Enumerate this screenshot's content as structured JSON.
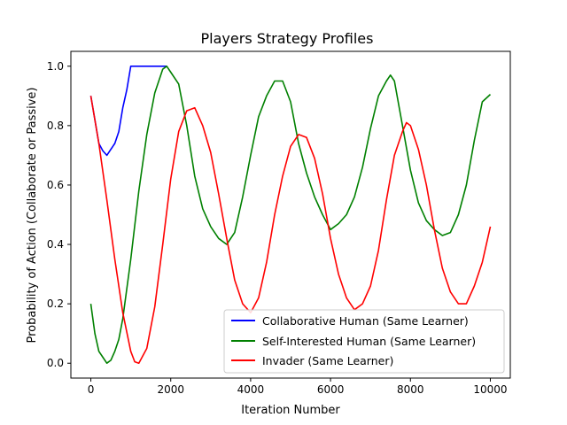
{
  "chart_data": {
    "type": "line",
    "title": "Players Strategy Profiles",
    "xlabel": "Iteration Number",
    "ylabel": "Probability of Action (Collaborate or Passive)",
    "xlim": [
      -500,
      10500
    ],
    "ylim": [
      -0.05,
      1.05
    ],
    "xticks": [
      0,
      2000,
      4000,
      6000,
      8000,
      10000
    ],
    "yticks": [
      0.0,
      0.2,
      0.4,
      0.6,
      0.8,
      1.0
    ],
    "xtick_labels": [
      "0",
      "2000",
      "4000",
      "6000",
      "8000",
      "10000"
    ],
    "ytick_labels": [
      "0.0",
      "0.2",
      "0.4",
      "0.6",
      "0.8",
      "1.0"
    ],
    "grid": false,
    "legend_position": "lower-right",
    "series": [
      {
        "name": "Collaborative Human (Same Learner)",
        "color": "#0000ff",
        "x": [
          0,
          100,
          200,
          300,
          400,
          500,
          600,
          700,
          800,
          900,
          1000,
          1200,
          1400,
          1600,
          1800,
          1900
        ],
        "y": [
          0.9,
          0.82,
          0.74,
          0.715,
          0.7,
          0.72,
          0.74,
          0.78,
          0.86,
          0.92,
          1.0,
          1.0,
          1.0,
          1.0,
          1.0,
          1.0
        ]
      },
      {
        "name": "Self-Interested Human (Same Learner)",
        "color": "#008000",
        "x": [
          0,
          100,
          200,
          300,
          400,
          500,
          600,
          700,
          800,
          1000,
          1200,
          1400,
          1600,
          1800,
          1900,
          2000,
          2200,
          2400,
          2600,
          2800,
          3000,
          3200,
          3400,
          3600,
          3800,
          4000,
          4200,
          4400,
          4600,
          4800,
          5000,
          5200,
          5400,
          5600,
          5800,
          6000,
          6200,
          6400,
          6600,
          6800,
          7000,
          7200,
          7400,
          7500,
          7600,
          7800,
          8000,
          8200,
          8400,
          8600,
          8800,
          9000,
          9200,
          9400,
          9600,
          9800,
          10000
        ],
        "y": [
          0.2,
          0.1,
          0.04,
          0.02,
          0.0,
          0.01,
          0.04,
          0.08,
          0.15,
          0.35,
          0.58,
          0.77,
          0.91,
          0.99,
          1.0,
          0.98,
          0.94,
          0.8,
          0.63,
          0.52,
          0.46,
          0.42,
          0.4,
          0.44,
          0.56,
          0.7,
          0.83,
          0.9,
          0.95,
          0.95,
          0.88,
          0.74,
          0.64,
          0.56,
          0.5,
          0.45,
          0.47,
          0.5,
          0.56,
          0.66,
          0.79,
          0.9,
          0.95,
          0.97,
          0.95,
          0.8,
          0.65,
          0.54,
          0.48,
          0.45,
          0.43,
          0.44,
          0.5,
          0.6,
          0.75,
          0.88,
          0.905
        ]
      },
      {
        "name": "Invader (Same Learner)",
        "color": "#ff0000",
        "x": [
          0,
          200,
          400,
          600,
          800,
          1000,
          1100,
          1200,
          1400,
          1600,
          1800,
          2000,
          2200,
          2400,
          2600,
          2800,
          3000,
          3200,
          3400,
          3600,
          3800,
          4000,
          4200,
          4400,
          4600,
          4800,
          5000,
          5200,
          5400,
          5600,
          5800,
          6000,
          6200,
          6400,
          6600,
          6800,
          7000,
          7200,
          7400,
          7600,
          7800,
          7900,
          8000,
          8200,
          8400,
          8600,
          8800,
          9000,
          9200,
          9400,
          9600,
          9800,
          10000
        ],
        "y": [
          0.9,
          0.74,
          0.55,
          0.35,
          0.17,
          0.04,
          0.005,
          0.0,
          0.05,
          0.19,
          0.4,
          0.62,
          0.78,
          0.85,
          0.86,
          0.8,
          0.71,
          0.57,
          0.42,
          0.28,
          0.2,
          0.17,
          0.22,
          0.34,
          0.5,
          0.63,
          0.73,
          0.77,
          0.76,
          0.69,
          0.57,
          0.42,
          0.3,
          0.22,
          0.18,
          0.2,
          0.26,
          0.38,
          0.55,
          0.7,
          0.78,
          0.81,
          0.8,
          0.72,
          0.6,
          0.45,
          0.32,
          0.24,
          0.2,
          0.2,
          0.26,
          0.34,
          0.46
        ]
      }
    ]
  }
}
